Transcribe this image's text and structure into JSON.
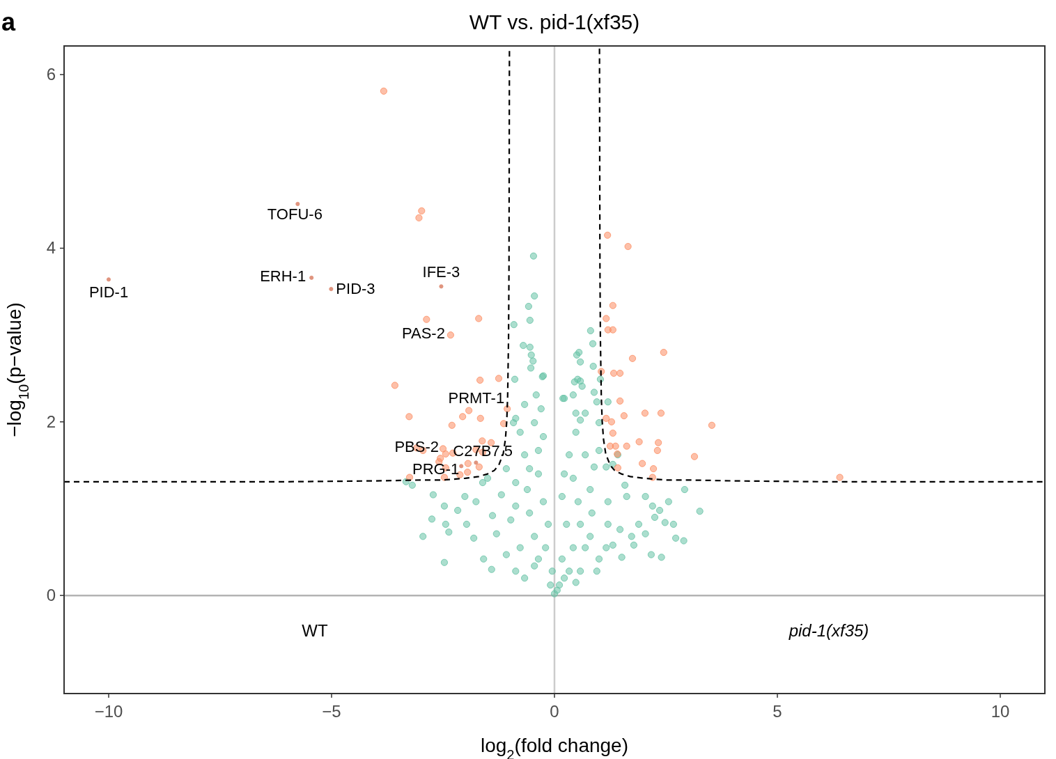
{
  "chart_data": {
    "type": "scatter",
    "title": "WT vs. pid-1(xf35)",
    "xlabel": "log$_{2}$(fold change)",
    "ylabel": "−log$_{10}$(p−value)",
    "xlim": [
      -11,
      11
    ],
    "ylim": [
      -1.13,
      6.33
    ],
    "xticks": [
      {
        "value": -10,
        "label": "−10"
      },
      {
        "value": -5,
        "label": "−5"
      },
      0,
      5,
      10
    ],
    "yticks": [
      0,
      2,
      4,
      6
    ],
    "grid": false,
    "marker": "circle",
    "ref_lines": [
      {
        "axis": "x",
        "value": 0,
        "color": "#cccccc",
        "line_style": "solid"
      },
      {
        "axis": "y",
        "value": 0,
        "color": "#b3b3b3",
        "line_style": "solid"
      }
    ],
    "annotations": [
      "a",
      {
        "text": "PID-1",
        "x": -10.0,
        "y": 3.64
      },
      {
        "text": "TOFU-6",
        "x": -5.76,
        "y": 4.51
      },
      {
        "text": "ERH-1",
        "x": -5.45,
        "y": 3.66
      },
      {
        "text": "PID-3",
        "x": -5.01,
        "y": 3.53
      },
      {
        "text": "IFE-3",
        "x": -2.54,
        "y": 3.56
      },
      {
        "text": "PAS-2",
        "x": -2.33,
        "y": 3.0
      },
      {
        "text": "PRMT-1",
        "x": -1.06,
        "y": 2.15
      },
      {
        "text": "PBS-2",
        "x": -2.5,
        "y": 1.69
      },
      {
        "text": "C27B7.5",
        "x": -1.76,
        "y": 1.53
      },
      {
        "text": "PRG-1",
        "x": -2.09,
        "y": 1.49
      },
      "WT",
      "pid-1(xf35)"
    ],
    "series": [
      {
        "color": "#66c2a5",
        "x": [
          -0.47,
          -0.45,
          -0.58,
          -0.55,
          -0.91,
          -0.7,
          -0.55,
          -0.52,
          -0.48,
          -0.53,
          -0.89,
          -0.27,
          0.81,
          0.86,
          0.55,
          0.5,
          0.58,
          0.87,
          0.45,
          0.62,
          0.52,
          0.22,
          1.03,
          -2.95,
          -2.47,
          -2.75,
          -3.19,
          -3.33,
          -2.72,
          -2.47,
          -2.37,
          -1.41,
          -1.59,
          -1.81,
          -2.17,
          -1.97,
          -1.76,
          -1.5,
          -1.19,
          -1.3,
          -1.08,
          -0.87,
          -0.87,
          -0.67,
          -0.77,
          -0.87,
          -0.67,
          -0.41,
          -0.25,
          -0.25,
          -0.36,
          -0.25,
          -0.14,
          -0.2,
          -0.05,
          -0.36,
          -0.45,
          -0.56,
          -0.61,
          -0.56,
          -0.36,
          -0.45,
          -0.3,
          -0.45,
          -0.77,
          -0.67,
          -0.98,
          -0.87,
          -1.39,
          -2.01,
          -2.44,
          -1.61,
          -1.08,
          -0.92,
          0.0,
          -0.09,
          0.11,
          0.33,
          0.42,
          0.27,
          0.17,
          0.22,
          0.33,
          0.48,
          0.58,
          0.69,
          0.48,
          0.42,
          0.53,
          0.58,
          0.69,
          0.58,
          0.48,
          0.8,
          0.84,
          0.8,
          0.69,
          0.89,
          1.0,
          1.16,
          1.2,
          1.2,
          1.16,
          1.0,
          0.95,
          1.47,
          1.31,
          1.51,
          1.73,
          1.62,
          1.58,
          2.04,
          2.2,
          2.36,
          2.56,
          2.92,
          3.26,
          2.72,
          2.9,
          2.4,
          2.17,
          2.04,
          1.78,
          2.48,
          2.25,
          1.89,
          2.67,
          1.42,
          1.0,
          1.2,
          0.95,
          0.58,
          0.19,
          0.89,
          0.42,
          1.31,
          0.17,
          0.22,
          0.06
        ],
        "values": [
          3.91,
          3.45,
          3.33,
          3.17,
          3.12,
          2.88,
          2.86,
          2.77,
          2.7,
          2.62,
          2.49,
          2.52,
          3.05,
          2.9,
          2.8,
          2.77,
          2.69,
          2.64,
          2.46,
          2.41,
          2.49,
          2.27,
          2.49,
          0.68,
          0.38,
          0.88,
          1.27,
          1.31,
          1.16,
          1.03,
          0.73,
          0.3,
          0.42,
          0.66,
          0.98,
          0.82,
          1.08,
          1.35,
          1.16,
          0.71,
          0.47,
          0.28,
          1.3,
          1.62,
          1.88,
          2.04,
          2.2,
          2.31,
          2.53,
          1.83,
          1.4,
          1.08,
          0.82,
          0.55,
          0.28,
          0.42,
          0.68,
          0.95,
          1.22,
          1.46,
          1.67,
          1.99,
          2.15,
          0.34,
          0.55,
          0.2,
          0.87,
          1.03,
          0.92,
          1.14,
          0.82,
          1.3,
          1.46,
          1.99,
          0.02,
          0.12,
          0.12,
          0.28,
          0.55,
          0.82,
          1.14,
          1.4,
          1.62,
          1.88,
          2.02,
          2.1,
          2.1,
          1.35,
          1.08,
          0.82,
          0.55,
          0.28,
          0.15,
          0.68,
          0.95,
          1.22,
          1.62,
          1.48,
          1.67,
          1.48,
          1.08,
          0.82,
          0.55,
          0.42,
          0.28,
          0.76,
          0.58,
          0.44,
          0.68,
          1.14,
          1.27,
          1.14,
          1.03,
          0.98,
          1.08,
          1.22,
          0.97,
          0.66,
          0.63,
          0.44,
          0.47,
          0.71,
          0.58,
          0.84,
          0.9,
          0.82,
          0.82,
          1.62,
          1.99,
          2.23,
          2.23,
          2.47,
          2.27,
          2.34,
          2.31,
          1.51,
          0.42,
          0.2,
          0.06
        ]
      },
      {
        "color": "#fc8d62",
        "x": [
          -3.83,
          -2.98,
          -3.04,
          1.19,
          1.65,
          -2.87,
          -1.7,
          1.31,
          1.16,
          1.2,
          1.31,
          1.75,
          2.45,
          -3.58,
          -1.67,
          -1.25,
          1.05,
          1.33,
          1.47,
          1.47,
          2.03,
          2.39,
          3.53,
          -3.26,
          -1.92,
          -2.06,
          -1.66,
          -2.3,
          -1.14,
          -1.06,
          1.16,
          1.28,
          1.56,
          1.31,
          1.25,
          1.37,
          1.9,
          2.33,
          2.31,
          1.62,
          1.41,
          1.97,
          3.14,
          2.22,
          1.42,
          2.2,
          6.4,
          -1.62,
          -1.42,
          -1.61,
          -1.76,
          -2.5,
          -2.95,
          -2.56,
          -2.44,
          -2.28,
          -2.59,
          -2.44,
          -1.94,
          -2.12,
          -1.95,
          -2.47,
          -3.25,
          -3.09,
          -1.69,
          -2.33
        ],
        "values": [
          5.81,
          4.43,
          4.35,
          4.15,
          4.02,
          3.18,
          3.19,
          3.34,
          3.19,
          3.06,
          3.06,
          2.73,
          2.8,
          2.42,
          2.48,
          2.5,
          2.58,
          2.56,
          2.56,
          2.24,
          2.1,
          2.1,
          1.96,
          2.06,
          2.13,
          2.06,
          2.04,
          1.96,
          1.98,
          2.15,
          2.04,
          2.0,
          2.07,
          1.87,
          1.72,
          1.72,
          1.77,
          1.76,
          1.67,
          1.72,
          1.63,
          1.52,
          1.6,
          1.46,
          1.47,
          1.36,
          1.36,
          1.78,
          1.76,
          1.65,
          1.68,
          1.69,
          1.67,
          1.58,
          1.63,
          1.64,
          1.54,
          1.47,
          1.52,
          1.39,
          1.42,
          1.36,
          1.36,
          1.7,
          1.48,
          3.0
        ]
      },
      {
        "color": "#e0947e",
        "x": [
          -10.0,
          -5.76,
          -5.45,
          -5.01,
          -2.54,
          -1.76,
          -2.09
        ],
        "values": [
          3.64,
          4.51,
          3.66,
          3.53,
          3.56,
          1.53,
          1.49
        ]
      },
      {
        "type": "line",
        "marker": "none",
        "color": "#000000",
        "line_style": "dashed",
        "x": [
          -11,
          -8,
          -6,
          -4,
          -3,
          -2.5,
          -2,
          -1.7,
          -1.5,
          -1.35,
          -1.25,
          -1.15,
          -1.1,
          -1.07,
          -1.05,
          -1.03,
          -1.02,
          -1.01
        ],
        "values": [
          1.31,
          1.31,
          1.31,
          1.32,
          1.33,
          1.33,
          1.35,
          1.37,
          1.4,
          1.44,
          1.5,
          1.63,
          1.8,
          2.01,
          2.3,
          2.97,
          3.8,
          6.3
        ]
      },
      {
        "type": "line",
        "marker": "none",
        "color": "#000000",
        "line_style": "dashed",
        "x": [
          1.01,
          1.02,
          1.03,
          1.05,
          1.07,
          1.1,
          1.15,
          1.25,
          1.35,
          1.5,
          1.7,
          2,
          2.5,
          3,
          4,
          6,
          8,
          11
        ],
        "values": [
          6.3,
          3.8,
          2.97,
          2.3,
          2.01,
          1.8,
          1.63,
          1.5,
          1.44,
          1.4,
          1.37,
          1.35,
          1.33,
          1.33,
          1.32,
          1.31,
          1.31,
          1.31
        ]
      }
    ]
  }
}
